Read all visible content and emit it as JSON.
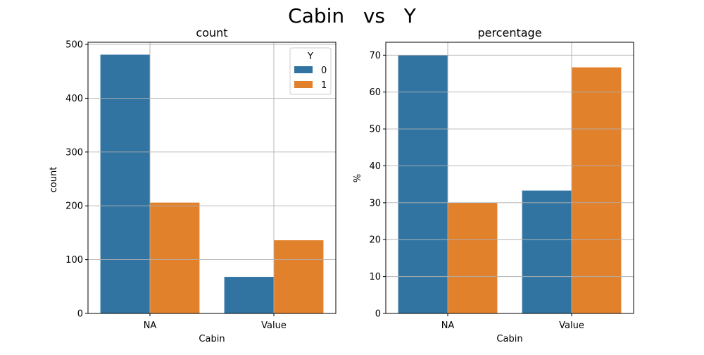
{
  "figure": {
    "title": "Cabin   vs   Y"
  },
  "legend": {
    "title": "Y",
    "entries": [
      "0",
      "1"
    ]
  },
  "colors": {
    "series_0": "#3274a1",
    "series_1": "#e1812c",
    "grid": "#b0b0b0"
  },
  "chart_data": [
    {
      "type": "bar",
      "title": "count",
      "xlabel": "Cabin",
      "ylabel": "count",
      "categories": [
        "NA",
        "Value"
      ],
      "series": [
        {
          "name": "0",
          "values": [
            481,
            68
          ]
        },
        {
          "name": "1",
          "values": [
            206,
            136
          ]
        }
      ],
      "ylim": [
        0,
        504
      ],
      "yticks": [
        0,
        100,
        200,
        300,
        400,
        500
      ],
      "grid": true,
      "legend": "top-right"
    },
    {
      "type": "bar",
      "title": "percentage",
      "xlabel": "Cabin",
      "ylabel": "%",
      "categories": [
        "NA",
        "Value"
      ],
      "series": [
        {
          "name": "0",
          "values": [
            70.0,
            33.3
          ]
        },
        {
          "name": "1",
          "values": [
            30.0,
            66.7
          ]
        }
      ],
      "ylim": [
        0,
        73.5
      ],
      "yticks": [
        0,
        10,
        20,
        30,
        40,
        50,
        60,
        70
      ],
      "grid": true,
      "legend": "none"
    }
  ]
}
